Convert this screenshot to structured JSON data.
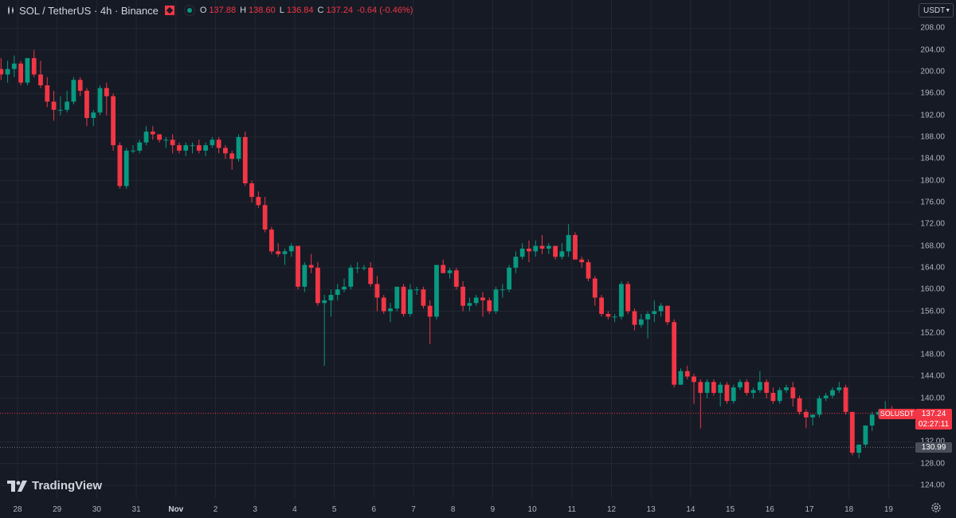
{
  "header": {
    "symbol": "SOL / TetherUS · 4h · Binance",
    "ohlc": {
      "o_label": "O",
      "o": "137.88",
      "h_label": "H",
      "h": "138.60",
      "l_label": "L",
      "l": "136.84",
      "c_label": "C",
      "c": "137.24",
      "change": "-0.64 (-0.46%)"
    }
  },
  "currency_select": {
    "value": "USDT"
  },
  "logo": {
    "text": "TradingView"
  },
  "price_tags": {
    "symbol_tag": "SOLUSDT",
    "last_price": "137.24",
    "countdown": "02:27:11",
    "marker_price": "130.99"
  },
  "price_axis": {
    "labels": [
      "208.00",
      "204.00",
      "200.00",
      "196.00",
      "192.00",
      "188.00",
      "184.00",
      "180.00",
      "176.00",
      "172.00",
      "168.00",
      "164.00",
      "160.00",
      "156.00",
      "152.00",
      "148.00",
      "144.00",
      "140.00",
      "132.00",
      "128.00",
      "124.00"
    ]
  },
  "time_axis": {
    "labels": [
      "28",
      "29",
      "30",
      "31",
      "Nov",
      "2",
      "3",
      "4",
      "5",
      "6",
      "7",
      "8",
      "9",
      "10",
      "11",
      "12",
      "13",
      "14",
      "15",
      "16",
      "17",
      "18",
      "19"
    ]
  },
  "colors": {
    "background": "#161a25",
    "up": "#089981",
    "down": "#f23645",
    "grid": "#232733"
  },
  "chart_data": {
    "type": "candlestick",
    "title": "SOL / TetherUS · 4h · Binance",
    "timeframe": "4h",
    "x_start": "Oct 28",
    "candles_per_day": 6,
    "ylim": [
      122,
      210
    ],
    "last_price": 137.24,
    "marker_price": 130.99,
    "candles": [
      [
        200.5,
        202.5,
        198.5,
        199.5
      ],
      [
        199.5,
        202.0,
        198.0,
        200.5
      ],
      [
        200.5,
        203.0,
        199.0,
        201.5
      ],
      [
        201.5,
        202.0,
        197.5,
        198.0
      ],
      [
        198.0,
        202.5,
        197.5,
        202.5
      ],
      [
        202.5,
        204.0,
        199.0,
        199.5
      ],
      [
        199.5,
        202.0,
        197.0,
        197.5
      ],
      [
        197.5,
        199.0,
        193.5,
        194.5
      ],
      [
        194.5,
        196.5,
        191.0,
        193.0
      ],
      [
        193.0,
        195.5,
        192.0,
        193.0
      ],
      [
        193.0,
        196.5,
        192.5,
        194.5
      ],
      [
        194.5,
        199.0,
        194.0,
        198.5
      ],
      [
        198.5,
        199.0,
        195.5,
        196.5
      ],
      [
        196.5,
        197.0,
        190.0,
        191.5
      ],
      [
        191.5,
        193.0,
        190.0,
        192.5
      ],
      [
        192.5,
        197.5,
        192.0,
        197.0
      ],
      [
        197.0,
        198.0,
        192.0,
        195.5
      ],
      [
        195.5,
        196.0,
        185.5,
        186.5
      ],
      [
        186.5,
        187.0,
        178.5,
        179.0
      ],
      [
        179.0,
        186.0,
        178.5,
        185.5
      ],
      [
        185.5,
        186.5,
        185.0,
        185.5
      ],
      [
        185.5,
        187.5,
        185.0,
        187.0
      ],
      [
        187.0,
        190.0,
        186.5,
        189.0
      ],
      [
        189.0,
        190.0,
        187.5,
        188.5
      ],
      [
        188.5,
        188.5,
        187.0,
        187.5
      ],
      [
        187.5,
        188.0,
        186.0,
        187.5
      ],
      [
        187.5,
        188.5,
        185.0,
        186.5
      ],
      [
        186.5,
        187.0,
        185.0,
        185.5
      ],
      [
        185.5,
        187.0,
        184.5,
        186.5
      ],
      [
        186.5,
        187.0,
        185.0,
        186.5
      ],
      [
        186.5,
        187.5,
        185.0,
        185.5
      ],
      [
        185.5,
        187.0,
        184.5,
        186.5
      ],
      [
        186.5,
        188.0,
        186.0,
        187.5
      ],
      [
        187.5,
        188.0,
        185.0,
        186.0
      ],
      [
        186.0,
        186.5,
        184.0,
        185.0
      ],
      [
        185.0,
        185.5,
        182.0,
        184.0
      ],
      [
        184.0,
        188.5,
        183.5,
        188.0
      ],
      [
        188.0,
        189.0,
        179.0,
        179.5
      ],
      [
        179.5,
        180.0,
        176.0,
        177.0
      ],
      [
        177.0,
        178.0,
        175.0,
        175.5
      ],
      [
        175.5,
        177.0,
        170.5,
        171.0
      ],
      [
        171.0,
        171.5,
        166.5,
        167.0
      ],
      [
        167.0,
        168.5,
        166.0,
        166.5
      ],
      [
        166.5,
        167.5,
        164.5,
        167.0
      ],
      [
        167.0,
        168.5,
        166.0,
        168.0
      ],
      [
        168.0,
        168.0,
        160.0,
        160.5
      ],
      [
        160.5,
        165.0,
        159.5,
        164.5
      ],
      [
        164.5,
        166.5,
        163.0,
        164.0
      ],
      [
        164.0,
        165.0,
        157.0,
        157.5
      ],
      [
        157.5,
        159.0,
        146.0,
        158.0
      ],
      [
        158.0,
        160.0,
        155.0,
        159.0
      ],
      [
        159.0,
        161.0,
        158.0,
        160.0
      ],
      [
        160.0,
        162.0,
        159.5,
        160.5
      ],
      [
        160.5,
        164.5,
        160.0,
        164.0
      ],
      [
        164.0,
        165.0,
        163.0,
        164.0
      ],
      [
        164.0,
        164.5,
        163.5,
        164.0
      ],
      [
        164.0,
        165.0,
        160.5,
        161.0
      ],
      [
        161.0,
        162.5,
        156.0,
        158.5
      ],
      [
        158.5,
        159.0,
        155.5,
        156.0
      ],
      [
        156.0,
        157.5,
        154.0,
        156.5
      ],
      [
        156.5,
        160.5,
        156.0,
        160.5
      ],
      [
        160.5,
        161.0,
        155.0,
        155.5
      ],
      [
        155.5,
        161.0,
        155.0,
        160.0
      ],
      [
        160.0,
        160.5,
        159.0,
        160.0
      ],
      [
        160.0,
        160.5,
        156.5,
        157.0
      ],
      [
        157.0,
        158.0,
        150.0,
        155.0
      ],
      [
        155.0,
        164.5,
        154.5,
        164.5
      ],
      [
        164.5,
        165.5,
        163.0,
        163.0
      ],
      [
        163.0,
        164.0,
        162.0,
        163.5
      ],
      [
        163.5,
        164.0,
        160.0,
        160.5
      ],
      [
        160.5,
        161.5,
        156.0,
        157.0
      ],
      [
        157.0,
        158.5,
        156.0,
        157.5
      ],
      [
        157.5,
        159.0,
        157.0,
        158.5
      ],
      [
        158.5,
        159.5,
        155.0,
        158.0
      ],
      [
        158.0,
        158.5,
        155.5,
        156.0
      ],
      [
        156.0,
        160.5,
        155.5,
        160.0
      ],
      [
        160.0,
        161.0,
        158.5,
        160.0
      ],
      [
        160.0,
        164.5,
        159.5,
        164.0
      ],
      [
        164.0,
        167.0,
        163.0,
        166.0
      ],
      [
        166.0,
        168.5,
        165.5,
        167.5
      ],
      [
        167.5,
        169.0,
        165.0,
        167.0
      ],
      [
        167.0,
        169.0,
        166.0,
        168.0
      ],
      [
        168.0,
        170.0,
        166.5,
        167.5
      ],
      [
        167.5,
        168.5,
        166.5,
        168.0
      ],
      [
        168.0,
        168.0,
        165.5,
        166.0
      ],
      [
        166.0,
        168.5,
        165.5,
        167.0
      ],
      [
        167.0,
        172.0,
        166.0,
        170.0
      ],
      [
        170.0,
        170.5,
        165.5,
        165.5
      ],
      [
        165.5,
        166.0,
        164.0,
        165.0
      ],
      [
        165.0,
        165.5,
        161.5,
        162.0
      ],
      [
        162.0,
        162.5,
        157.0,
        158.5
      ],
      [
        158.5,
        159.0,
        155.0,
        155.5
      ],
      [
        155.5,
        156.0,
        154.5,
        155.0
      ],
      [
        155.0,
        155.5,
        154.0,
        155.0
      ],
      [
        155.0,
        161.5,
        154.5,
        161.0
      ],
      [
        161.0,
        161.5,
        155.5,
        156.0
      ],
      [
        156.0,
        156.5,
        152.5,
        153.5
      ],
      [
        153.5,
        155.5,
        153.0,
        154.5
      ],
      [
        154.5,
        156.0,
        151.0,
        155.5
      ],
      [
        155.5,
        158.0,
        154.0,
        156.0
      ],
      [
        156.0,
        157.5,
        155.0,
        157.0
      ],
      [
        157.0,
        157.0,
        153.5,
        154.0
      ],
      [
        154.0,
        154.5,
        142.0,
        142.5
      ],
      [
        142.5,
        145.5,
        142.5,
        145.0
      ],
      [
        145.0,
        146.0,
        143.5,
        144.0
      ],
      [
        144.0,
        144.5,
        139.0,
        143.0
      ],
      [
        143.0,
        143.5,
        134.5,
        141.0
      ],
      [
        141.0,
        143.5,
        140.0,
        143.0
      ],
      [
        143.0,
        143.5,
        140.5,
        141.0
      ],
      [
        141.0,
        143.0,
        138.5,
        142.5
      ],
      [
        142.5,
        143.0,
        139.0,
        139.5
      ],
      [
        139.5,
        142.5,
        139.0,
        142.0
      ],
      [
        142.0,
        143.5,
        141.5,
        143.0
      ],
      [
        143.0,
        143.5,
        140.5,
        141.0
      ],
      [
        141.0,
        142.0,
        140.0,
        141.5
      ],
      [
        141.5,
        145.0,
        141.0,
        143.0
      ],
      [
        143.0,
        143.5,
        140.0,
        141.0
      ],
      [
        141.0,
        142.0,
        139.0,
        139.5
      ],
      [
        139.5,
        142.0,
        139.0,
        141.5
      ],
      [
        141.5,
        142.5,
        141.0,
        142.0
      ],
      [
        142.0,
        143.0,
        138.5,
        140.0
      ],
      [
        140.0,
        140.5,
        137.0,
        137.5
      ],
      [
        137.5,
        138.0,
        134.5,
        136.5
      ],
      [
        136.5,
        137.0,
        135.0,
        137.0
      ],
      [
        137.0,
        140.5,
        136.5,
        140.0
      ],
      [
        140.0,
        141.0,
        139.5,
        140.5
      ],
      [
        140.5,
        142.0,
        140.0,
        141.5
      ],
      [
        141.5,
        143.0,
        141.0,
        142.0
      ],
      [
        142.0,
        142.5,
        137.0,
        137.5
      ],
      [
        137.5,
        137.5,
        129.5,
        130.0
      ],
      [
        130.0,
        131.5,
        129.0,
        131.5
      ],
      [
        131.5,
        135.0,
        131.0,
        135.0
      ],
      [
        135.0,
        137.5,
        134.0,
        137.0
      ],
      [
        137.0,
        138.0,
        136.5,
        137.5
      ],
      [
        137.5,
        139.5,
        137.0,
        138.0
      ],
      [
        137.88,
        138.6,
        136.84,
        137.24
      ]
    ]
  }
}
